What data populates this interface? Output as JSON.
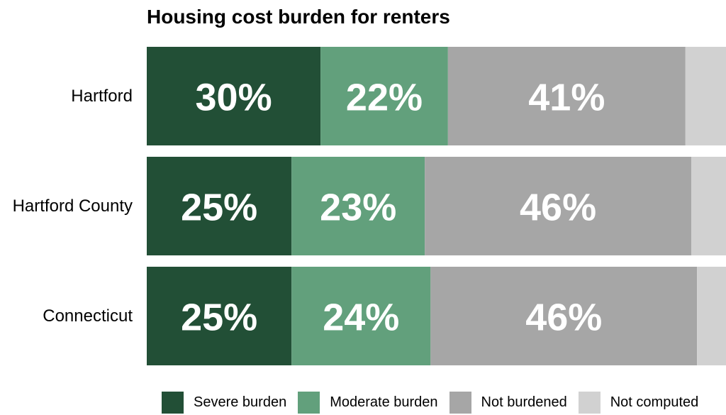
{
  "chart_data": {
    "type": "bar",
    "orientation": "horizontal",
    "stacked": true,
    "title": "Housing cost burden for renters",
    "categories": [
      "Hartford",
      "Hartford County",
      "Connecticut"
    ],
    "series": [
      {
        "name": "Severe burden",
        "color": "#224f36",
        "values": [
          30,
          25,
          25
        ],
        "labels": [
          "30%",
          "25%",
          "25%"
        ]
      },
      {
        "name": "Moderate burden",
        "color": "#62a07c",
        "values": [
          22,
          23,
          24
        ],
        "labels": [
          "22%",
          "23%",
          "24%"
        ]
      },
      {
        "name": "Not burdened",
        "color": "#a6a6a6",
        "values": [
          41,
          46,
          46
        ],
        "labels": [
          "41%",
          "46%",
          "46%"
        ]
      },
      {
        "name": "Not computed",
        "color": "#d1d1d1",
        "values": [
          7,
          6,
          6
        ],
        "labels": [
          "",
          "",
          ""
        ]
      }
    ],
    "xlim": [
      0,
      100
    ],
    "grid": false,
    "legend_position": "bottom"
  }
}
